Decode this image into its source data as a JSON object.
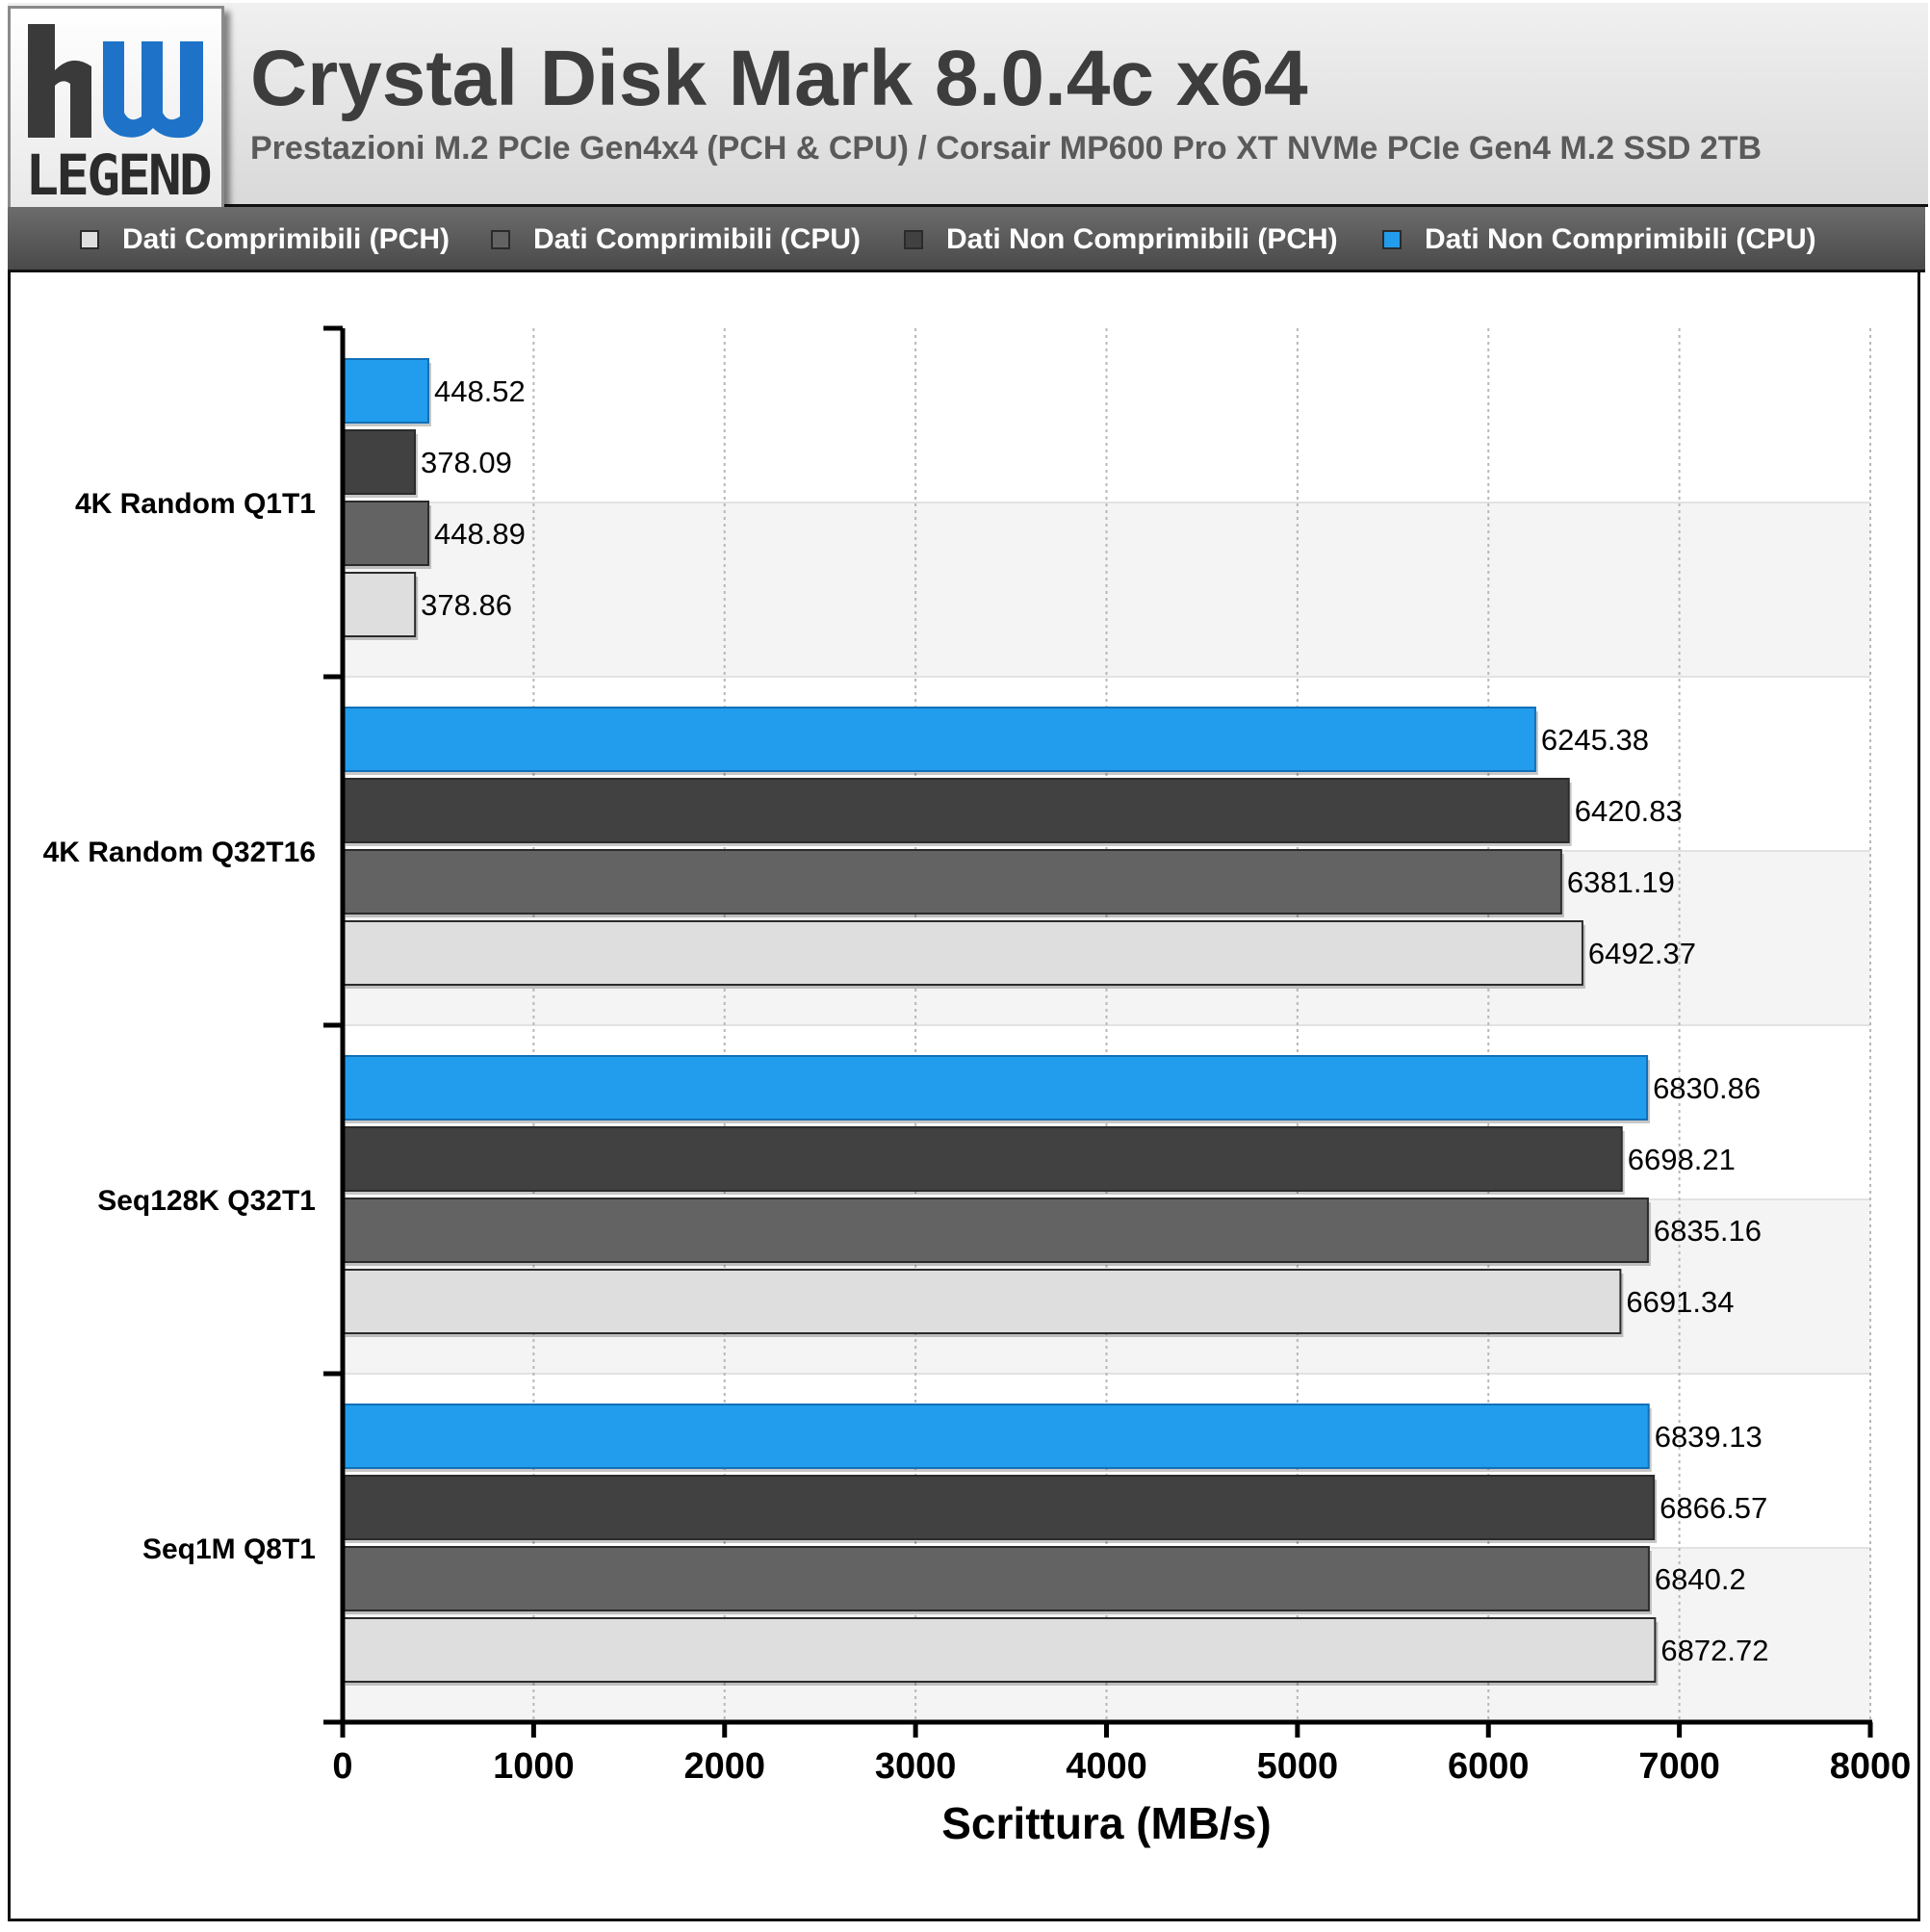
{
  "header": {
    "title": "Crystal Disk Mark 8.0.4c x64",
    "subtitle": "Prestazioni M.2 PCIe Gen4x4 (PCH & CPU) / Corsair MP600 Pro XT NVMe PCIe Gen4 M.2 SSD 2TB",
    "logo_text": "LEGEND"
  },
  "colors": {
    "accent_blue": "#229ced",
    "dark_gray": "#414141",
    "mid_gray": "#636363",
    "light_gray": "#dedede"
  },
  "legend": [
    {
      "label": "Dati Comprimibili (PCH)",
      "color": "#dedede"
    },
    {
      "label": "Dati Comprimibili (CPU)",
      "color": "#636363"
    },
    {
      "label": "Dati Non Comprimibili (PCH)",
      "color": "#414141"
    },
    {
      "label": "Dati Non Comprimibili (CPU)",
      "color": "#229ced"
    }
  ],
  "chart_data": {
    "type": "bar",
    "orientation": "horizontal",
    "categories": [
      "4K Random Q1T1",
      "4K Random Q32T16",
      "Seq128K Q32T1",
      "Seq1M Q8T1"
    ],
    "series": [
      {
        "name": "Dati Non Comprimibili (CPU)",
        "color": "#229ced",
        "values": [
          448.52,
          6245.38,
          6830.86,
          6839.13
        ]
      },
      {
        "name": "Dati Non Comprimibili (PCH)",
        "color": "#414141",
        "values": [
          378.09,
          6420.83,
          6698.21,
          6866.57
        ]
      },
      {
        "name": "Dati Comprimibili (CPU)",
        "color": "#636363",
        "values": [
          448.89,
          6381.19,
          6835.16,
          6840.2
        ]
      },
      {
        "name": "Dati Comprimibili (PCH)",
        "color": "#dedede",
        "values": [
          378.86,
          6492.37,
          6691.34,
          6872.72
        ]
      }
    ],
    "xlabel": "Scrittura (MB/s)",
    "ylabel": "",
    "xlim": [
      0,
      8000
    ],
    "xticks": [
      0,
      1000,
      2000,
      3000,
      4000,
      5000,
      6000,
      7000,
      8000
    ],
    "grid": true,
    "legend_position": "top"
  }
}
